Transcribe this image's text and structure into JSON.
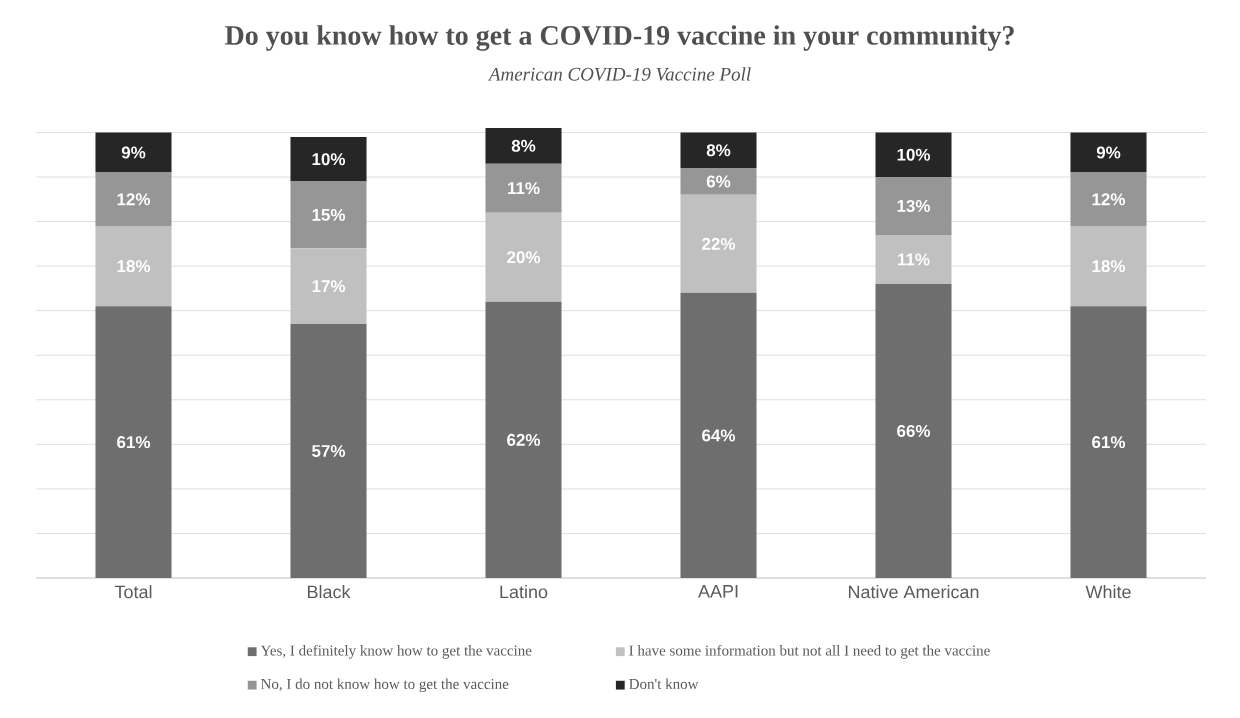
{
  "chart_data": {
    "type": "bar",
    "stacked": true,
    "title": "Do you know how to get a COVID-19 vaccine in your community?",
    "subtitle": "American COVID-19 Vaccine Poll",
    "categories": [
      "Total",
      "Black",
      "Latino",
      "AAPI",
      "Native American",
      "White"
    ],
    "series": [
      {
        "name": "Yes, I definitely know how to get the vaccine",
        "color": "#6e6e6e",
        "values": [
          61,
          57,
          62,
          64,
          66,
          61
        ],
        "value_labels": [
          "61%",
          "57%",
          "62%",
          "64%",
          "66%",
          "61%"
        ]
      },
      {
        "name": "I have some information but not all I need to get the vaccine",
        "color": "#c0c0c0",
        "values": [
          18,
          17,
          20,
          22,
          11,
          18
        ],
        "value_labels": [
          "18%",
          "17%",
          "20%",
          "22%",
          "11%",
          "18%"
        ]
      },
      {
        "name": "No, I do not know how to get the vaccine",
        "color": "#969696",
        "values": [
          12,
          15,
          11,
          6,
          13,
          12
        ],
        "value_labels": [
          "12%",
          "15%",
          "11%",
          "6%",
          "13%",
          "12%"
        ]
      },
      {
        "name": "Don't know",
        "color": "#262626",
        "values": [
          9,
          10,
          8,
          8,
          10,
          9
        ],
        "value_labels": [
          "9%",
          "10%",
          "8%",
          "8%",
          "10%",
          "9%"
        ]
      }
    ],
    "ylim": [
      0,
      101
    ],
    "tick_labels": "x",
    "grid": "y",
    "legend": "bottom"
  }
}
